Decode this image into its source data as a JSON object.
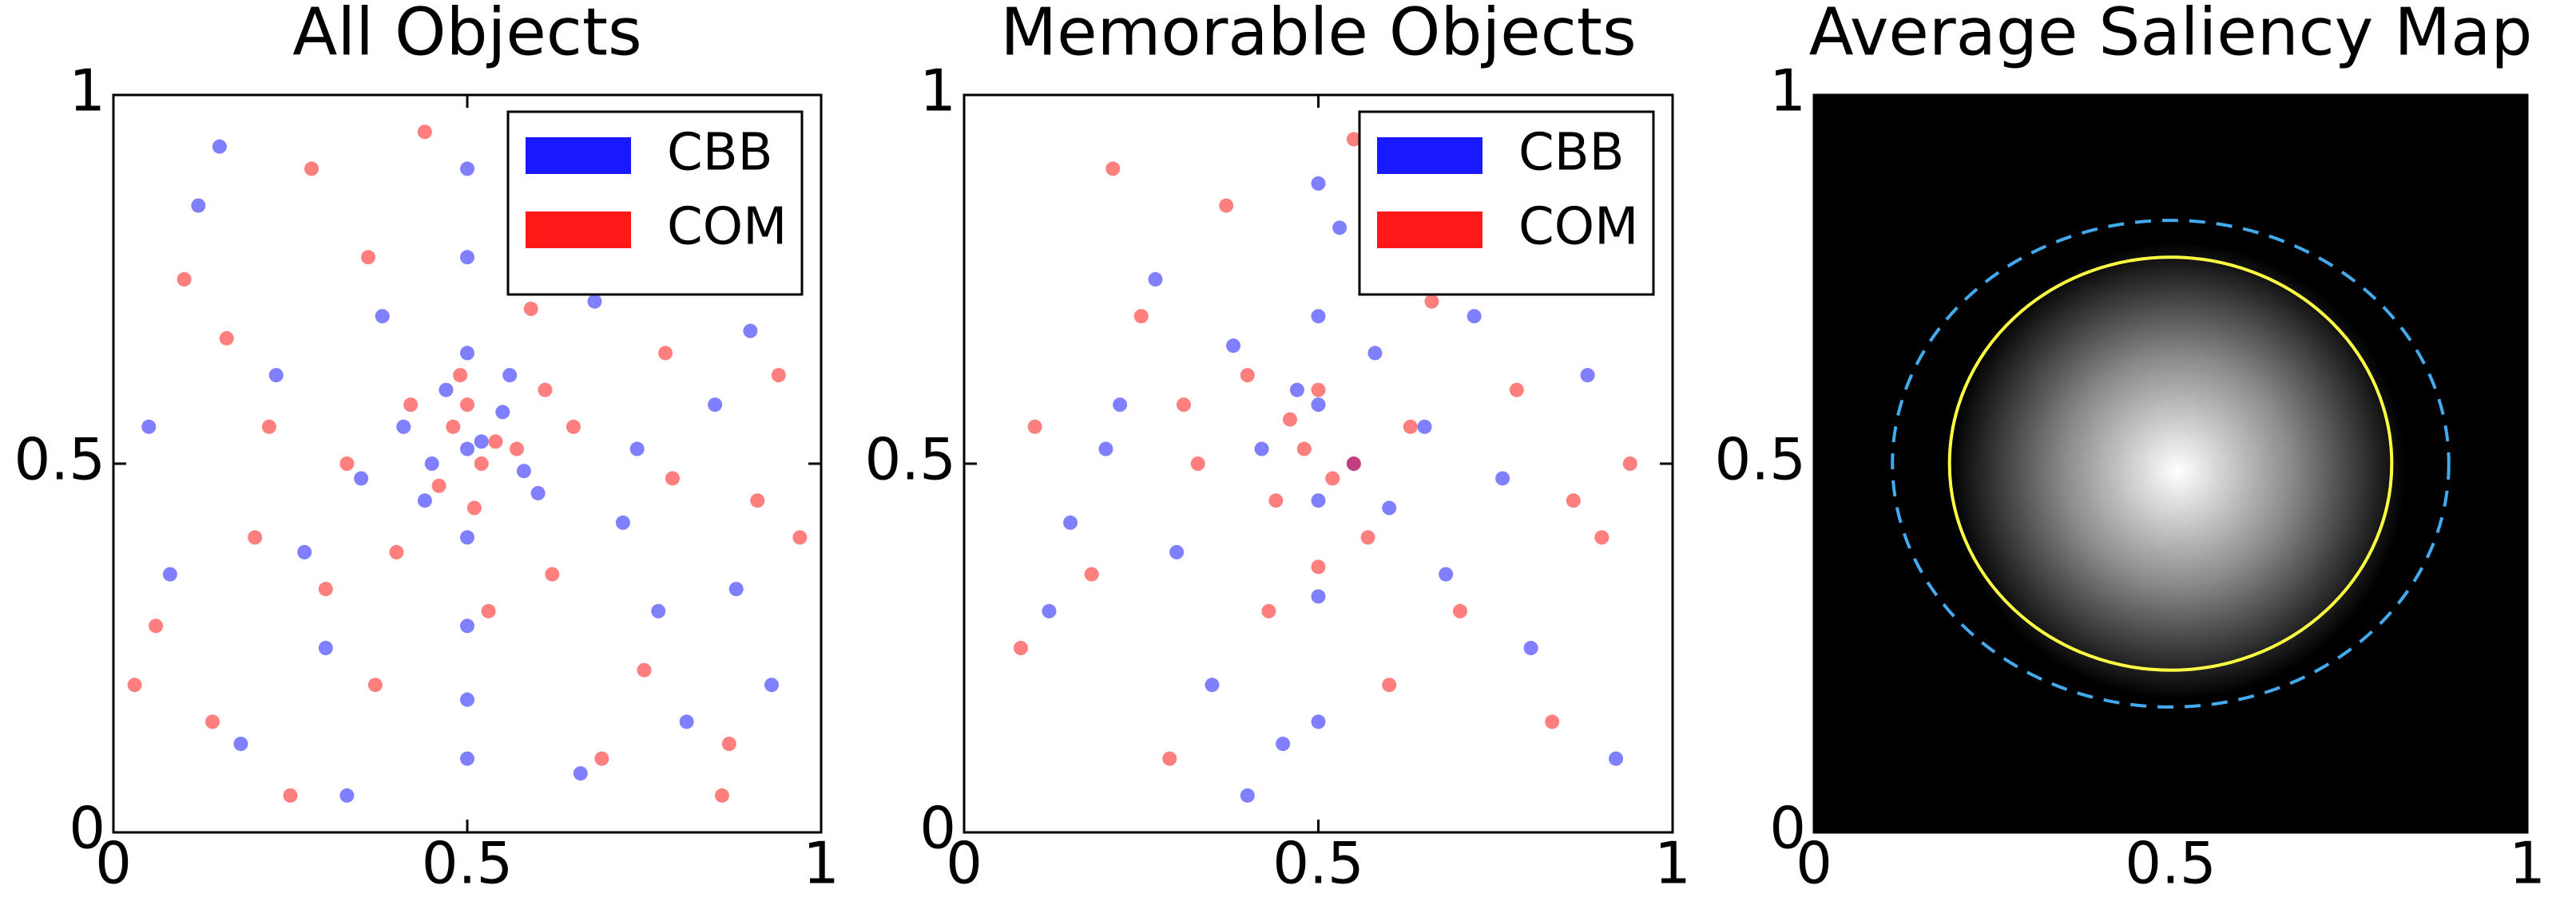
{
  "chart_data": [
    {
      "type": "scatter",
      "title": "All Objects",
      "xlim": [
        0,
        1
      ],
      "ylim": [
        0,
        1
      ],
      "xticks": [
        0,
        0.5,
        1
      ],
      "yticks": [
        0,
        0.5,
        1
      ],
      "legend": "upper right",
      "alpha": 0.5,
      "series": [
        {
          "name": "CBB",
          "color": "#0000ff",
          "x": [
            0.5,
            0.5,
            0.5,
            0.5,
            0.5,
            0.5,
            0.5,
            0.5,
            0.12,
            0.23,
            0.35,
            0.41,
            0.45,
            0.55,
            0.6,
            0.68,
            0.77,
            0.85,
            0.93,
            0.08,
            0.18,
            0.3,
            0.47,
            0.52,
            0.58,
            0.63,
            0.72,
            0.81,
            0.9,
            0.05,
            0.15,
            0.27,
            0.38,
            0.44,
            0.56,
            0.66,
            0.74,
            0.88,
            0.95,
            0.33
          ],
          "y": [
            0.9,
            0.78,
            0.65,
            0.52,
            0.4,
            0.28,
            0.18,
            0.1,
            0.85,
            0.62,
            0.48,
            0.55,
            0.5,
            0.57,
            0.46,
            0.72,
            0.3,
            0.58,
            0.2,
            0.35,
            0.12,
            0.25,
            0.6,
            0.53,
            0.49,
            0.88,
            0.42,
            0.15,
            0.68,
            0.55,
            0.93,
            0.38,
            0.7,
            0.45,
            0.62,
            0.08,
            0.52,
            0.33,
            0.8,
            0.05
          ]
        },
        {
          "name": "COM",
          "color": "#ff0000",
          "x": [
            0.48,
            0.52,
            0.5,
            0.46,
            0.54,
            0.49,
            0.51,
            0.1,
            0.2,
            0.28,
            0.37,
            0.42,
            0.57,
            0.62,
            0.7,
            0.79,
            0.87,
            0.94,
            0.06,
            0.16,
            0.25,
            0.33,
            0.44,
            0.53,
            0.59,
            0.65,
            0.75,
            0.83,
            0.91,
            0.14,
            0.22,
            0.36,
            0.4,
            0.61,
            0.69,
            0.78,
            0.86,
            0.97,
            0.03,
            0.3
          ],
          "y": [
            0.55,
            0.5,
            0.58,
            0.47,
            0.53,
            0.62,
            0.44,
            0.75,
            0.4,
            0.9,
            0.2,
            0.58,
            0.52,
            0.35,
            0.82,
            0.48,
            0.12,
            0.62,
            0.28,
            0.67,
            0.05,
            0.5,
            0.95,
            0.3,
            0.71,
            0.55,
            0.22,
            0.86,
            0.45,
            0.15,
            0.55,
            0.78,
            0.38,
            0.6,
            0.1,
            0.65,
            0.05,
            0.4,
            0.2,
            0.33
          ]
        }
      ]
    },
    {
      "type": "scatter",
      "title": "Memorable Objects",
      "xlim": [
        0,
        1
      ],
      "ylim": [
        0,
        1
      ],
      "xticks": [
        0,
        0.5,
        1
      ],
      "yticks": [
        0,
        0.5,
        1
      ],
      "legend": "upper right",
      "alpha": 0.5,
      "series": [
        {
          "name": "CBB",
          "color": "#0000ff",
          "x": [
            0.5,
            0.5,
            0.5,
            0.5,
            0.5,
            0.5,
            0.42,
            0.55,
            0.47,
            0.6,
            0.38,
            0.65,
            0.3,
            0.72,
            0.22,
            0.8,
            0.15,
            0.88,
            0.45,
            0.53,
            0.35,
            0.68,
            0.27,
            0.76,
            0.12,
            0.92,
            0.58,
            0.4,
            0.62,
            0.2
          ],
          "y": [
            0.88,
            0.7,
            0.58,
            0.45,
            0.32,
            0.15,
            0.52,
            0.5,
            0.6,
            0.44,
            0.66,
            0.55,
            0.38,
            0.7,
            0.58,
            0.25,
            0.42,
            0.62,
            0.12,
            0.82,
            0.2,
            0.35,
            0.75,
            0.48,
            0.3,
            0.1,
            0.65,
            0.05,
            0.9,
            0.52
          ]
        },
        {
          "name": "COM",
          "color": "#ff0000",
          "x": [
            0.48,
            0.52,
            0.46,
            0.55,
            0.5,
            0.44,
            0.57,
            0.4,
            0.63,
            0.33,
            0.7,
            0.25,
            0.78,
            0.18,
            0.86,
            0.1,
            0.94,
            0.37,
            0.6,
            0.29,
            0.74,
            0.21,
            0.83,
            0.08,
            0.5,
            0.43,
            0.66,
            0.31,
            0.9,
            0.55
          ],
          "y": [
            0.52,
            0.48,
            0.56,
            0.5,
            0.6,
            0.45,
            0.4,
            0.62,
            0.55,
            0.5,
            0.3,
            0.7,
            0.6,
            0.35,
            0.45,
            0.55,
            0.5,
            0.85,
            0.2,
            0.1,
            0.78,
            0.9,
            0.15,
            0.25,
            0.36,
            0.3,
            0.72,
            0.58,
            0.4,
            0.94
          ]
        }
      ]
    },
    {
      "type": "saliency",
      "title": "Average Saliency Map",
      "xlim": [
        0,
        1
      ],
      "ylim": [
        0,
        1
      ],
      "xticks": [
        0,
        0.5,
        1
      ],
      "yticks": [
        0,
        0.5,
        1
      ],
      "background": "#000000",
      "peak": {
        "x": 0.51,
        "y": 0.49,
        "spread": 0.32
      },
      "ellipses": [
        {
          "cx": 0.5,
          "cy": 0.5,
          "rx": 0.31,
          "ry": 0.28,
          "color": "#ffff44",
          "style": "solid"
        },
        {
          "cx": 0.5,
          "cy": 0.5,
          "rx": 0.39,
          "ry": 0.33,
          "color": "#44aaee",
          "style": "dashed"
        }
      ]
    }
  ]
}
